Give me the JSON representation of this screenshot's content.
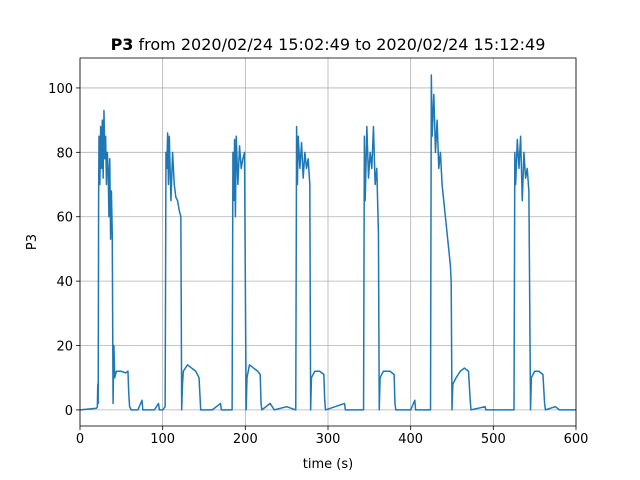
{
  "chart_data": {
    "type": "line",
    "title_parts": [
      "P3",
      "from 2020/02/24 15:02:49 to 2020/02/24 15:12:49"
    ],
    "xlabel": "time (s)",
    "ylabel": "P3",
    "color": "#1f77b4",
    "grid": true,
    "xlim": [
      0,
      600
    ],
    "ylim": [
      -5,
      109.3
    ],
    "xticks": [
      0,
      100,
      200,
      300,
      400,
      500,
      600
    ],
    "yticks": [
      0,
      20,
      40,
      60,
      80,
      100
    ],
    "x": [
      0,
      20,
      21,
      21.5,
      22,
      22.5,
      23,
      24,
      25,
      26,
      27,
      28,
      29,
      30,
      31,
      32,
      33,
      34,
      35,
      36,
      37,
      38,
      39,
      40,
      41,
      42,
      44,
      50,
      55,
      58,
      59,
      60,
      62,
      70,
      75,
      76,
      90,
      95,
      96,
      100,
      103,
      104,
      105,
      106,
      107,
      108,
      110,
      112,
      114,
      116,
      118,
      120,
      122,
      123,
      124,
      125,
      130,
      135,
      140,
      144,
      145,
      146,
      160,
      170,
      171,
      184,
      185,
      186,
      187,
      188,
      189,
      191,
      193,
      195,
      197,
      199,
      201,
      202,
      205,
      210,
      215,
      218,
      219,
      220,
      230,
      235,
      250,
      261,
      262,
      263,
      264,
      266,
      268,
      270,
      272,
      274,
      276,
      278,
      279,
      280,
      284,
      290,
      295,
      296,
      297,
      320,
      321,
      343,
      344,
      345,
      347,
      349,
      351,
      353,
      355,
      357,
      359,
      361,
      362,
      363,
      367,
      375,
      380,
      381,
      382,
      400,
      405,
      406,
      424,
      425,
      426,
      428,
      430,
      432,
      434,
      436,
      438,
      440,
      442,
      444,
      446,
      448,
      449,
      450,
      451,
      455,
      460,
      465,
      470,
      472,
      473,
      490,
      491,
      525,
      526,
      527,
      529,
      531,
      533,
      535,
      537,
      539,
      541,
      543,
      545,
      546,
      550,
      555,
      560,
      562,
      563,
      575,
      580,
      600
    ],
    "values": [
      0,
      0.5,
      1,
      8,
      2,
      65,
      85,
      70,
      88,
      75,
      90,
      72,
      93,
      78,
      85,
      70,
      80,
      75,
      60,
      78,
      53,
      68,
      55,
      2,
      20,
      10,
      12,
      12,
      11.5,
      12,
      5,
      1,
      0,
      0,
      3,
      0,
      0,
      2,
      0,
      0,
      1,
      80,
      75,
      86,
      70,
      85,
      65,
      80,
      70,
      66,
      65,
      62,
      60,
      0,
      8,
      12,
      14,
      13,
      12,
      10,
      5,
      0,
      0,
      2,
      0,
      0,
      80,
      65,
      84,
      60,
      85,
      70,
      82,
      75,
      78,
      80,
      0,
      10,
      14,
      13,
      12,
      11,
      2,
      0,
      2,
      0,
      1,
      0,
      88,
      70,
      85,
      75,
      83,
      72,
      80,
      75,
      78,
      70,
      0,
      10,
      12,
      12,
      11,
      3,
      0,
      2,
      0,
      0,
      85,
      65,
      88,
      72,
      80,
      75,
      88,
      70,
      75,
      55,
      0,
      10,
      12,
      12,
      11,
      2,
      0,
      0,
      3,
      0,
      0,
      104,
      85,
      98,
      80,
      90,
      75,
      80,
      70,
      65,
      60,
      55,
      50,
      45,
      40,
      0,
      8,
      10,
      12,
      13,
      12,
      3,
      0,
      1,
      0,
      0,
      80,
      70,
      84,
      75,
      85,
      65,
      80,
      72,
      75,
      68,
      0,
      10,
      12,
      12,
      11,
      2,
      0,
      1,
      0,
      0
    ]
  }
}
